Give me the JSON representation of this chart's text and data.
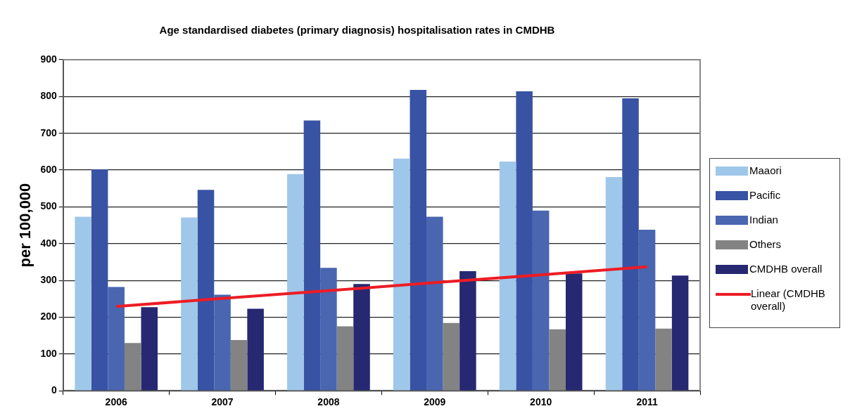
{
  "chart_data": {
    "type": "bar",
    "title": "Age standardised diabetes (primary diagnosis) hospitalisation rates in CMDHB",
    "ylabel": "per 100,000",
    "categories": [
      "2006",
      "2007",
      "2008",
      "2009",
      "2010",
      "2011"
    ],
    "series": [
      {
        "name": "Maaori",
        "color": "#9fc7e9",
        "values": [
          473,
          471,
          589,
          631,
          623,
          581
        ]
      },
      {
        "name": "Pacific",
        "color": "#3853a4",
        "values": [
          602,
          546,
          735,
          818,
          814,
          795
        ]
      },
      {
        "name": "Indian",
        "color": "#4a66b0",
        "values": [
          282,
          261,
          334,
          473,
          490,
          438
        ]
      },
      {
        "name": "Others",
        "color": "#838383",
        "values": [
          130,
          138,
          175,
          184,
          167,
          169
        ]
      },
      {
        "name": "CMDHB overall",
        "color": "#262872",
        "values": [
          227,
          223,
          290,
          325,
          319,
          313
        ]
      },
      {
        "name": "Linear (CMDHB overall)",
        "color": "#ed1c24",
        "type": "line",
        "values": [
          229,
          251,
          272,
          294,
          315,
          337
        ]
      }
    ],
    "ylim": [
      0,
      900
    ],
    "yticks": [
      0,
      100,
      200,
      300,
      400,
      500,
      600,
      700,
      800,
      900
    ],
    "grid": "y",
    "legend": "right",
    "marker": "none"
  }
}
